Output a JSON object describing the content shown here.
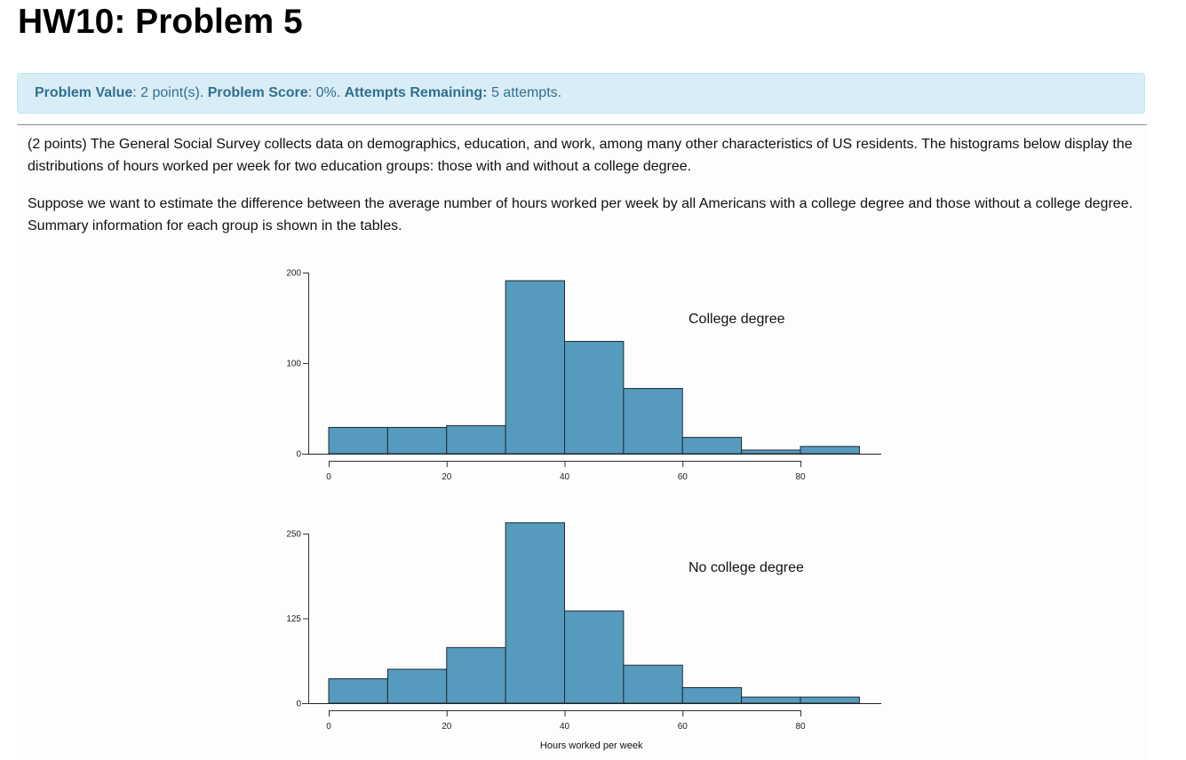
{
  "page": {
    "title": "HW10: Problem 5"
  },
  "alert": {
    "value_label": "Problem Value",
    "value_text": ": 2 point(s). ",
    "score_label": "Problem Score",
    "score_text": ": 0%. ",
    "attempts_label": "Attempts Remaining:",
    "attempts_text": " 5 attempts."
  },
  "problem": {
    "paragraph1": "(2 points) The General Social Survey collects data on demographics, education, and work, among many other characteristics of US residents. The histograms below display the distributions of hours worked per week for two education groups: those with and without a college degree.",
    "paragraph2": "Suppose we want to estimate the difference between the average number of hours worked per week by all Americans with a college degree and those without a college degree. Summary information for each group is shown in the tables."
  },
  "colors": {
    "bar_fill": "#569bbd",
    "bar_stroke": "#1e2a33",
    "alert_bg": "#d9edf7",
    "alert_text": "#31708f"
  },
  "chart_data": [
    {
      "type": "bar",
      "title": "College degree",
      "annotation": "College degree",
      "xlabel": "",
      "ylabel": "",
      "bins": [
        [
          0,
          10
        ],
        [
          10,
          20
        ],
        [
          20,
          30
        ],
        [
          30,
          40
        ],
        [
          40,
          50
        ],
        [
          50,
          60
        ],
        [
          60,
          70
        ],
        [
          70,
          80
        ],
        [
          80,
          90
        ]
      ],
      "categories": [
        "0-10",
        "10-20",
        "20-30",
        "30-40",
        "40-50",
        "50-60",
        "60-70",
        "70-80",
        "80-90"
      ],
      "values": [
        29,
        29,
        31,
        191,
        124,
        72,
        18,
        4,
        8
      ],
      "xticks": [
        0,
        20,
        40,
        60,
        80
      ],
      "yticks": [
        0,
        100,
        200
      ],
      "xlim": [
        0,
        90
      ],
      "ylim": [
        0,
        200
      ],
      "grid": false
    },
    {
      "type": "bar",
      "title": "No college degree",
      "annotation": "No college degree",
      "xlabel": "Hours worked per week",
      "ylabel": "",
      "bins": [
        [
          0,
          10
        ],
        [
          10,
          20
        ],
        [
          20,
          30
        ],
        [
          30,
          40
        ],
        [
          40,
          50
        ],
        [
          50,
          60
        ],
        [
          60,
          70
        ],
        [
          70,
          80
        ],
        [
          80,
          90
        ]
      ],
      "categories": [
        "0-10",
        "10-20",
        "20-30",
        "30-40",
        "40-50",
        "50-60",
        "60-70",
        "70-80",
        "80-90"
      ],
      "values": [
        36,
        50,
        82,
        266,
        136,
        56,
        23,
        9,
        9
      ],
      "xticks": [
        0,
        20,
        40,
        60,
        80
      ],
      "yticks": [
        0,
        125,
        250
      ],
      "xlim": [
        0,
        90
      ],
      "ylim": [
        0,
        250
      ],
      "grid": false
    }
  ]
}
